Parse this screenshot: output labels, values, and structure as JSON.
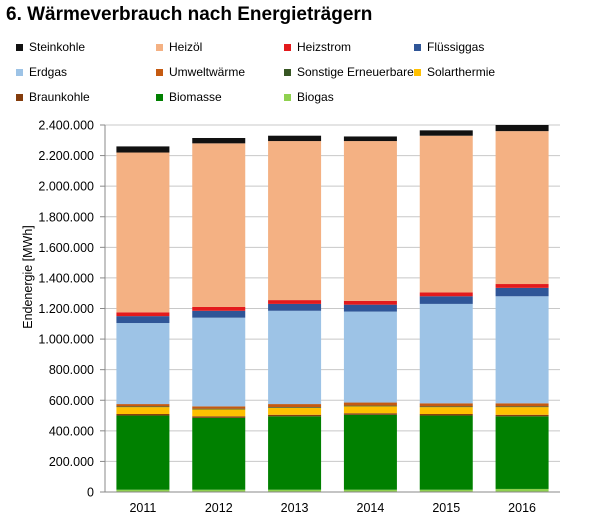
{
  "header": {
    "title": "6. Wärmeverbrauch nach Energieträgern"
  },
  "chart_data": {
    "type": "bar",
    "stacked": true,
    "categories": [
      "2011",
      "2012",
      "2013",
      "2014",
      "2015",
      "2016"
    ],
    "ylabel": "Endenergie [MWh]",
    "xlabel": "",
    "ylim": [
      0,
      2400000
    ],
    "yticks": [
      0,
      200000,
      400000,
      600000,
      800000,
      1000000,
      1200000,
      1400000,
      1600000,
      1800000,
      2000000,
      2200000,
      2400000
    ],
    "ytick_labels": [
      "0",
      "200.000",
      "400.000",
      "600.000",
      "800.000",
      "1.000.000",
      "1.200.000",
      "1.400.000",
      "1.600.000",
      "1.800.000",
      "2.000.000",
      "2.200.000",
      "2.400.000"
    ],
    "grid": "horizontal",
    "legend_position": "top",
    "stack_order": [
      "Biogas",
      "Biomasse",
      "Braunkohle",
      "Solarthermie",
      "Sonstige Erneuerbare",
      "Umweltwärme",
      "Erdgas",
      "Flüssiggas",
      "Heizstrom",
      "Heizöl",
      "Steinkohle"
    ],
    "series": [
      {
        "name": "Steinkohle",
        "color": "#111111",
        "values": [
          40000,
          35000,
          35000,
          30000,
          35000,
          40000
        ]
      },
      {
        "name": "Heizöl",
        "color": "#f4b183",
        "values": [
          1045000,
          1070000,
          1040000,
          1045000,
          1025000,
          1000000
        ]
      },
      {
        "name": "Heizstrom",
        "color": "#e31a1c",
        "values": [
          25000,
          25000,
          25000,
          25000,
          25000,
          25000
        ]
      },
      {
        "name": "Flüssiggas",
        "color": "#2f5597",
        "values": [
          45000,
          45000,
          45000,
          45000,
          50000,
          55000
        ]
      },
      {
        "name": "Erdgas",
        "color": "#9dc3e6",
        "values": [
          530000,
          580000,
          610000,
          595000,
          650000,
          700000
        ]
      },
      {
        "name": "Umweltwärme",
        "color": "#c55a11",
        "values": [
          15000,
          15000,
          20000,
          20000,
          20000,
          20000
        ]
      },
      {
        "name": "Sonstige Erneuerbare",
        "color": "#375623",
        "values": [
          5000,
          5000,
          5000,
          5000,
          5000,
          5000
        ]
      },
      {
        "name": "Solarthermie",
        "color": "#ffc000",
        "values": [
          45000,
          45000,
          45000,
          45000,
          45000,
          50000
        ]
      },
      {
        "name": "Braunkohle",
        "color": "#843c0c",
        "values": [
          10000,
          10000,
          10000,
          10000,
          10000,
          10000
        ]
      },
      {
        "name": "Biomasse",
        "color": "#008000",
        "values": [
          485000,
          470000,
          480000,
          490000,
          485000,
          475000
        ]
      },
      {
        "name": "Biogas",
        "color": "#8fd14f",
        "values": [
          15000,
          15000,
          15000,
          15000,
          15000,
          20000
        ]
      }
    ]
  }
}
